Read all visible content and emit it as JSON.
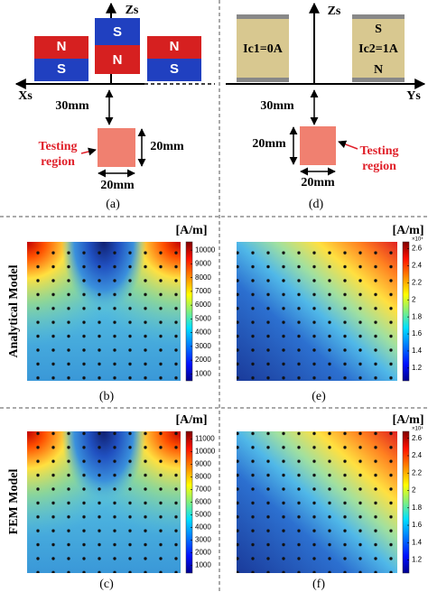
{
  "panels": {
    "a": {
      "axis_z": "Zs",
      "axis_x": "Xs",
      "magnets": [
        {
          "top": "N",
          "bottom": "S"
        },
        {
          "top": "S",
          "bottom": "N"
        },
        {
          "top": "N",
          "bottom": "S"
        }
      ],
      "distance": "30mm",
      "region_label": [
        "Testing",
        "region"
      ],
      "height": "20mm",
      "width": "20mm",
      "caption": "(a)"
    },
    "d": {
      "axis_z": "Zs",
      "axis_y": "Ys",
      "coil1": "Ic1=0A",
      "coil2": "Ic2=1A",
      "pole_top": "S",
      "pole_bottom": "N",
      "distance": "30mm",
      "height": "20mm",
      "region_label": [
        "Testing",
        "region"
      ],
      "width": "20mm",
      "caption": "(d)"
    },
    "b": {
      "unit": "[A/m]",
      "caption": "(b)",
      "clim": [
        500,
        10600
      ],
      "ticks": [
        1000,
        2000,
        3000,
        4000,
        5000,
        6000,
        7000,
        8000,
        9000,
        10000
      ]
    },
    "c": {
      "unit": "[A/m]",
      "caption": "(c)",
      "clim": [
        400,
        11600
      ],
      "ticks": [
        1000,
        2000,
        3000,
        4000,
        5000,
        6000,
        7000,
        8000,
        9000,
        10000,
        11000
      ]
    },
    "e": {
      "unit": "[A/m]",
      "caption": "(e)",
      "exponent": "×10⁴",
      "clim": [
        1.05,
        2.68
      ],
      "ticks": [
        1.2,
        1.4,
        1.6,
        1.8,
        2,
        2.2,
        2.4,
        2.6
      ]
    },
    "f": {
      "unit": "[A/m]",
      "caption": "(f)",
      "exponent": "×10⁴",
      "clim": [
        1.05,
        2.68
      ],
      "ticks": [
        1.2,
        1.4,
        1.6,
        1.8,
        2,
        2.2,
        2.4,
        2.6
      ]
    }
  },
  "row_labels": [
    "Analytical Model",
    "FEM Model"
  ]
}
